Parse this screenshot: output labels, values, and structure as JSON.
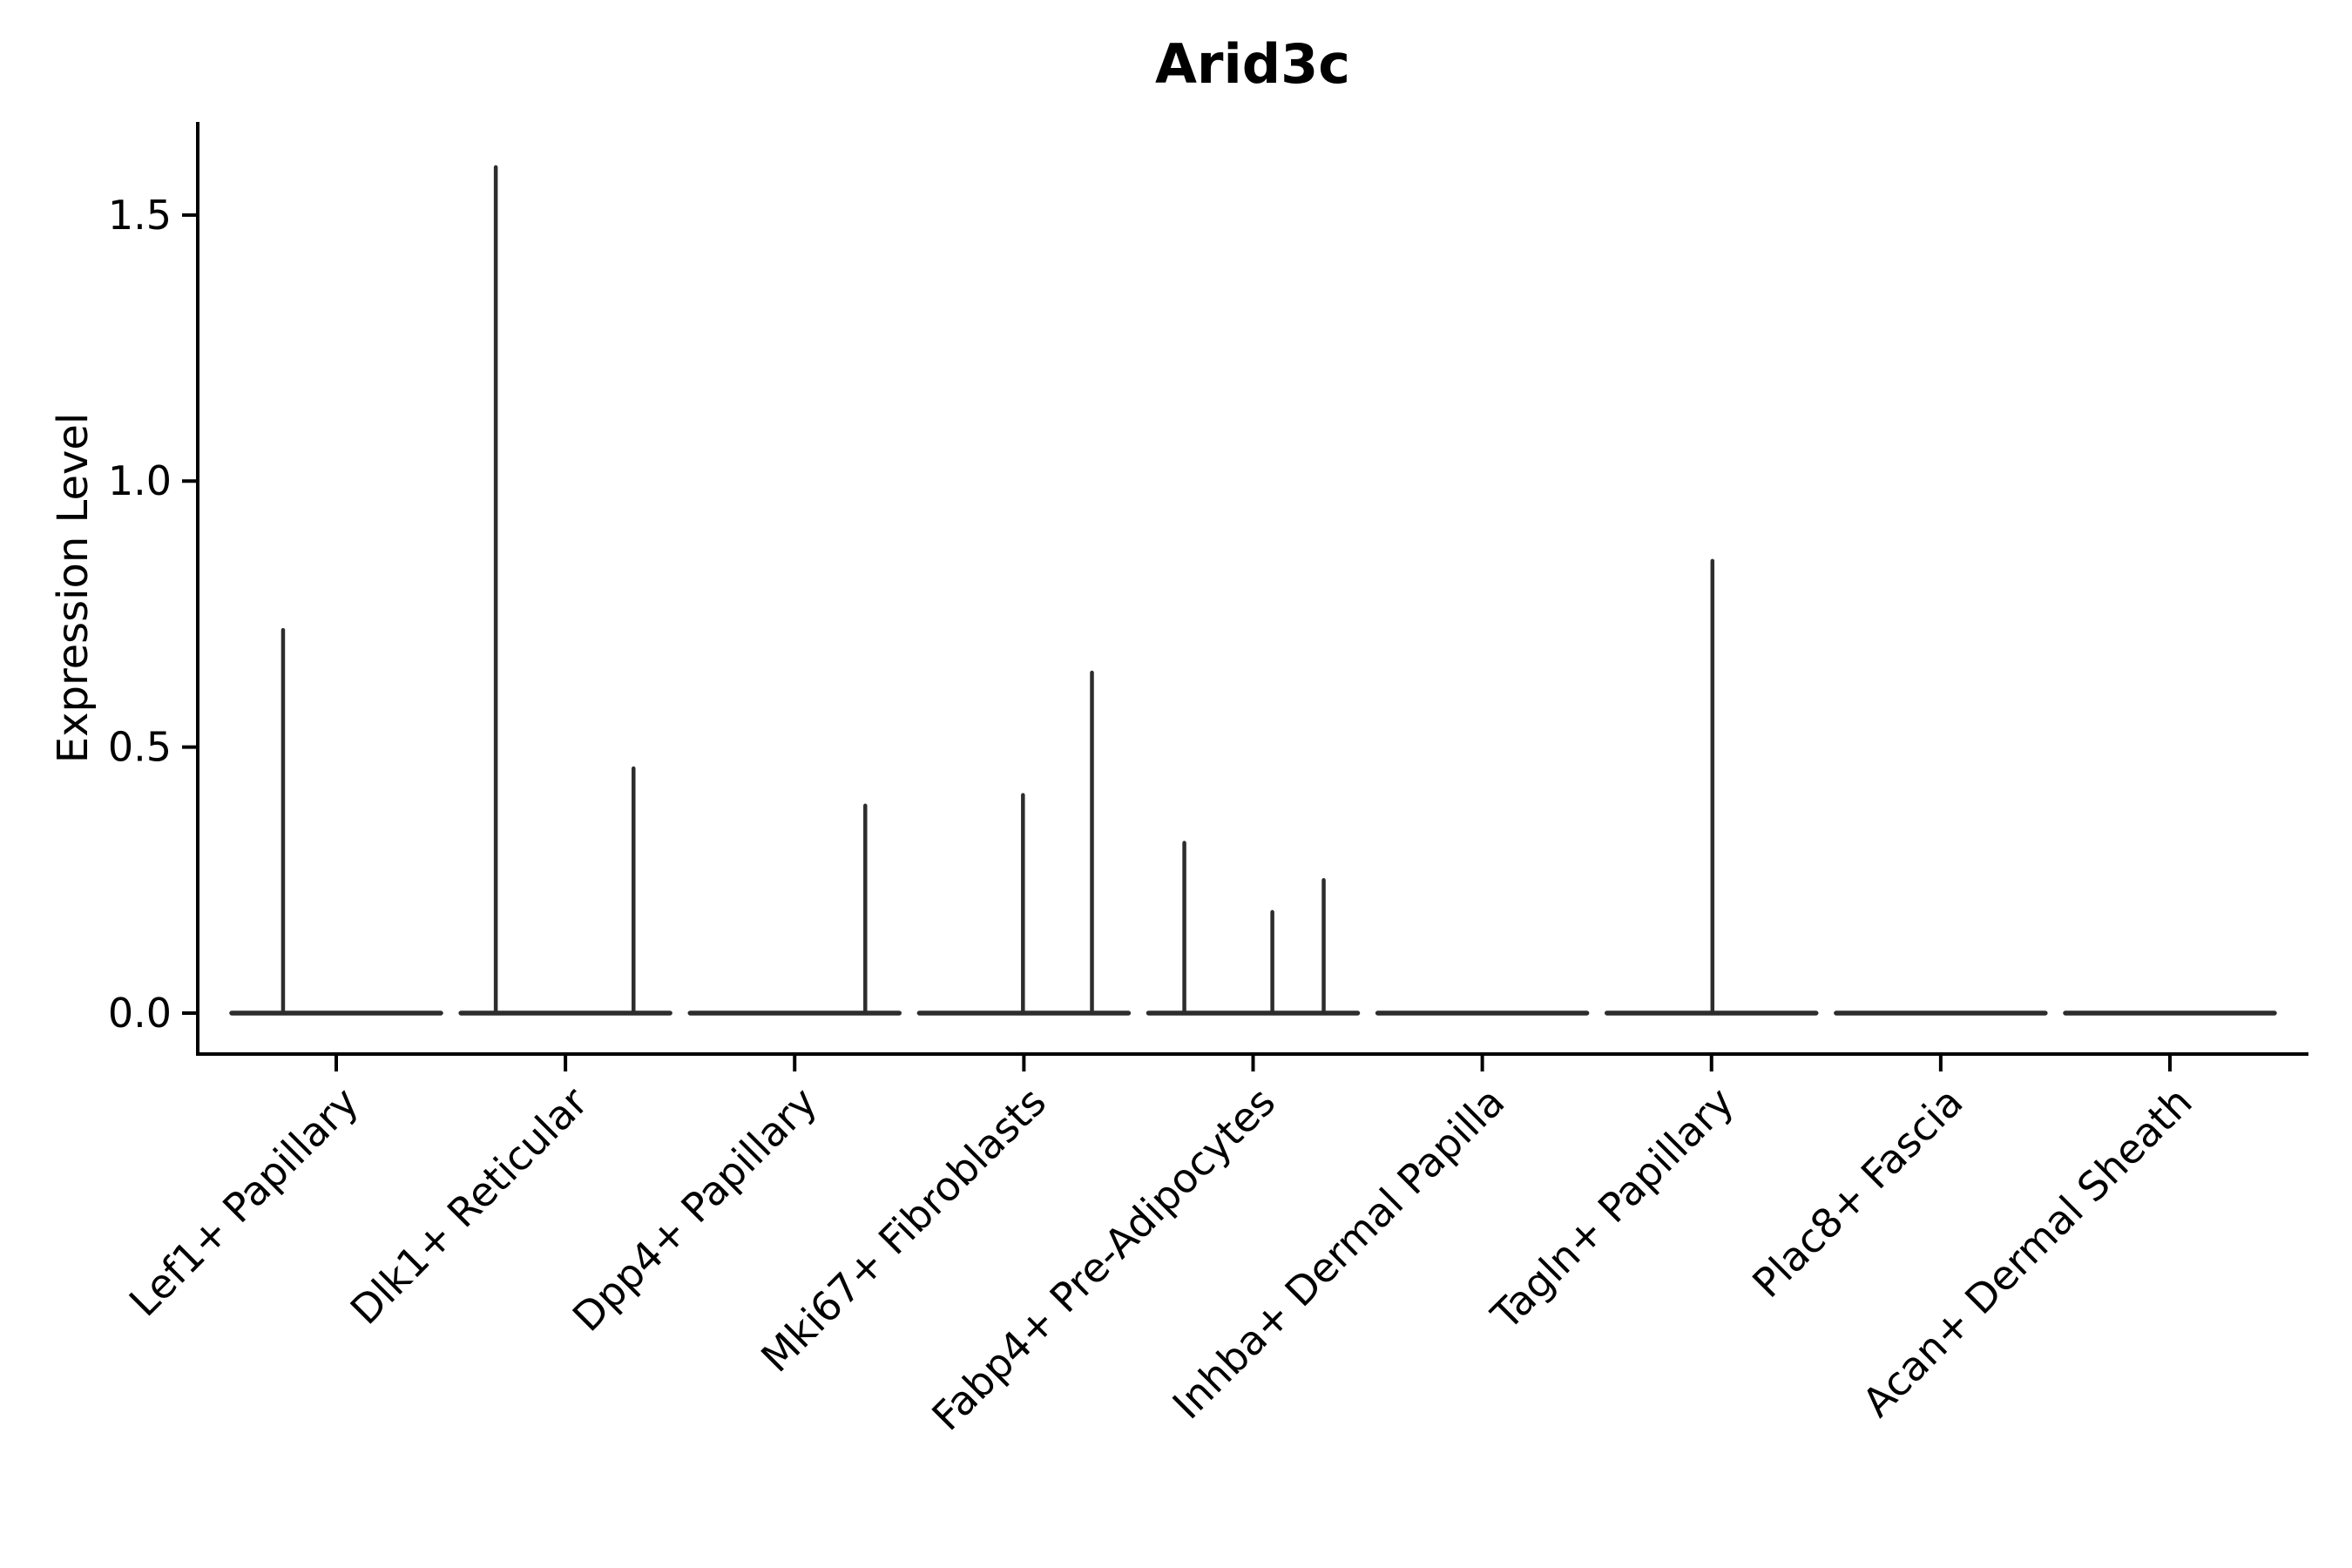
{
  "colors": {
    "violin": "#2d2d2d",
    "axis": "#000000",
    "text": "#000000",
    "background": "#ffffff"
  },
  "axes": {
    "ytick_labels": [
      "0.0",
      "0.5",
      "1.0",
      "1.5"
    ]
  },
  "chart_data": {
    "type": "violin",
    "title": "Arid3c",
    "xlabel": "",
    "ylabel": "Expression Level",
    "ylim": [
      -0.077,
      1.675
    ],
    "yticks": [
      0,
      0.5,
      1.0,
      1.5
    ],
    "grid": false,
    "legend": false,
    "violin_body_halfwidth": 0.456,
    "baseline_value": 0.0,
    "categories": [
      "Lef1+ Papillary",
      "Dlk1+ Reticular",
      "Dpp4+ Papillary",
      "Mki67+ Fibroblasts",
      "Fabp4+ Pre-Adipocytes",
      "Inhba+ Dermal Papilla",
      "Tagln+ Papillary",
      "Plac8+ Fascia",
      "Acan+ Dermal Sheath"
    ],
    "series": [
      {
        "name": "Lef1+ Papillary",
        "max_expression": 0.72,
        "spikes": [
          {
            "x_offset": -0.232,
            "value": 0.72
          }
        ]
      },
      {
        "name": "Dlk1+ Reticular",
        "max_expression": 1.59,
        "spikes": [
          {
            "x_offset": -0.304,
            "value": 1.59
          },
          {
            "x_offset": 0.297,
            "value": 0.46
          }
        ]
      },
      {
        "name": "Dpp4+ Papillary",
        "max_expression": 0.39,
        "spikes": [
          {
            "x_offset": 0.308,
            "value": 0.39
          }
        ]
      },
      {
        "name": "Mki67+ Fibroblasts",
        "max_expression": 0.64,
        "spikes": [
          {
            "x_offset": -0.004,
            "value": 0.41
          },
          {
            "x_offset": 0.297,
            "value": 0.64
          }
        ]
      },
      {
        "name": "Fabp4+ Pre-Adipocytes",
        "max_expression": 0.32,
        "spikes": [
          {
            "x_offset": -0.3,
            "value": 0.32
          },
          {
            "x_offset": 0.084,
            "value": 0.19
          },
          {
            "x_offset": 0.308,
            "value": 0.25
          }
        ]
      },
      {
        "name": "Inhba+ Dermal Papilla",
        "max_expression": 0.0,
        "spikes": []
      },
      {
        "name": "Tagln+ Papillary",
        "max_expression": 0.85,
        "spikes": [
          {
            "x_offset": 0.004,
            "value": 0.85
          }
        ]
      },
      {
        "name": "Plac8+ Fascia",
        "max_expression": 0.0,
        "spikes": []
      },
      {
        "name": "Acan+ Dermal Sheath",
        "max_expression": 0.0,
        "spikes": []
      }
    ]
  }
}
